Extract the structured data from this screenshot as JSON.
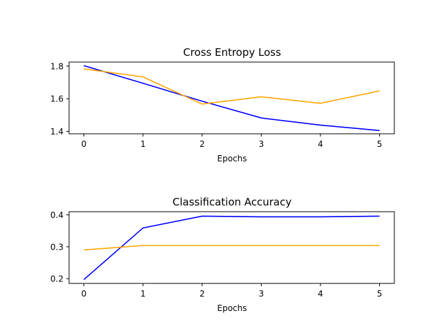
{
  "chart_data": [
    {
      "type": "line",
      "title": "Cross Entropy Loss",
      "xlabel": "Epochs",
      "ylabel": "",
      "x": [
        0,
        1,
        2,
        3,
        4,
        5
      ],
      "xlim": [
        -0.25,
        5.25
      ],
      "ylim": [
        1.385,
        1.825
      ],
      "x_ticks": [
        "0",
        "1",
        "2",
        "3",
        "4",
        "5"
      ],
      "y_ticks": [
        {
          "value": 1.4,
          "label": "1.4"
        },
        {
          "value": 1.6,
          "label": "1.6"
        },
        {
          "value": 1.8,
          "label": "1.8"
        }
      ],
      "grid": false,
      "series": [
        {
          "color": "#0000ff",
          "values": [
            1.803,
            1.695,
            1.585,
            1.482,
            1.438,
            1.405
          ]
        },
        {
          "color": "#ffa500",
          "values": [
            1.783,
            1.734,
            1.567,
            1.612,
            1.572,
            1.648
          ]
        }
      ]
    },
    {
      "type": "line",
      "title": "Classification Accuracy",
      "xlabel": "Epochs",
      "ylabel": "",
      "x": [
        0,
        1,
        2,
        3,
        4,
        5
      ],
      "xlim": [
        -0.25,
        5.25
      ],
      "ylim": [
        0.185,
        0.41
      ],
      "x_ticks": [
        "0",
        "1",
        "2",
        "3",
        "4",
        "5"
      ],
      "y_ticks": [
        {
          "value": 0.2,
          "label": "0.2"
        },
        {
          "value": 0.3,
          "label": "0.3"
        },
        {
          "value": 0.4,
          "label": "0.4"
        }
      ],
      "grid": false,
      "series": [
        {
          "color": "#0000ff",
          "values": [
            0.197,
            0.359,
            0.396,
            0.394,
            0.394,
            0.396
          ]
        },
        {
          "color": "#ffa500",
          "values": [
            0.29,
            0.304,
            0.304,
            0.304,
            0.304,
            0.304
          ]
        }
      ]
    }
  ]
}
